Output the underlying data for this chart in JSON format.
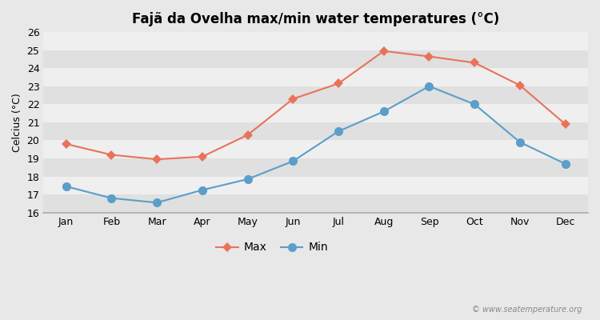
{
  "title": "Fajã da Ovelha max/min water temperatures (°C)",
  "ylabel": "Celcius (°C)",
  "months": [
    "Jan",
    "Feb",
    "Mar",
    "Apr",
    "May",
    "Jun",
    "Jul",
    "Aug",
    "Sep",
    "Oct",
    "Nov",
    "Dec"
  ],
  "max_temps": [
    19.8,
    19.2,
    18.95,
    19.1,
    20.3,
    22.3,
    23.15,
    24.95,
    24.65,
    24.3,
    23.05,
    20.9
  ],
  "min_temps": [
    17.45,
    16.8,
    16.55,
    17.25,
    17.85,
    18.85,
    20.5,
    21.6,
    23.0,
    22.0,
    19.9,
    18.7
  ],
  "max_color": "#e8735a",
  "min_color": "#5b9ec9",
  "bg_color": "#e8e8e8",
  "band_light": "#efefef",
  "band_dark": "#e0e0e0",
  "ylim": [
    16,
    26
  ],
  "yticks": [
    16,
    17,
    18,
    19,
    20,
    21,
    22,
    23,
    24,
    25,
    26
  ],
  "watermark": "© www.seatemperature.org",
  "legend_labels": [
    "Max",
    "Min"
  ],
  "max_marker": "D",
  "min_marker": "o",
  "linewidth": 1.5,
  "max_markersize": 6,
  "min_markersize": 8,
  "title_fontsize": 12,
  "label_fontsize": 9,
  "tick_fontsize": 9
}
